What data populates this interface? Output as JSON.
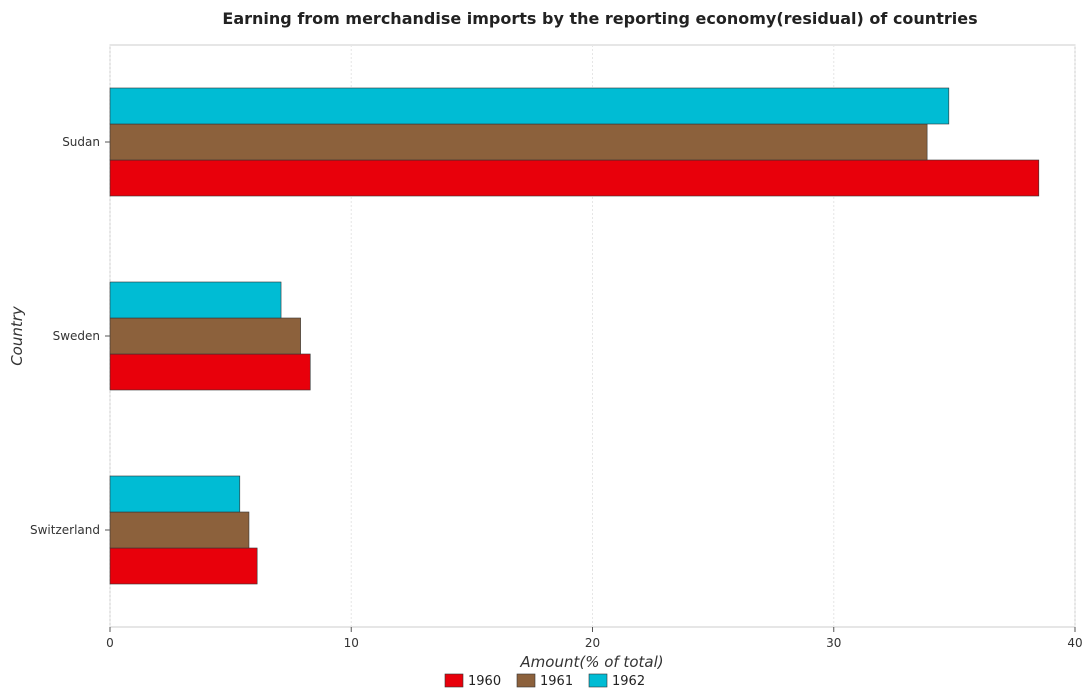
{
  "chart_data": {
    "type": "bar",
    "orientation": "horizontal",
    "title": "Earning from merchandise imports by the reporting economy(residual) of countries",
    "xlabel": "Amount(% of total)",
    "ylabel": "Country",
    "xlim": [
      0,
      40
    ],
    "xticks": [
      0,
      10,
      20,
      30,
      40
    ],
    "categories": [
      "Sudan",
      "Sweden",
      "Switzerland"
    ],
    "series": [
      {
        "name": "1960",
        "color": "#e8000b",
        "values": [
          38.5,
          8.3,
          6.1
        ]
      },
      {
        "name": "1961",
        "color": "#8c613c",
        "values": [
          33.87,
          7.9,
          5.76
        ]
      },
      {
        "name": "1962",
        "color": "#00bcd4",
        "values": [
          34.77,
          7.09,
          5.38
        ]
      }
    ],
    "grid": true,
    "legend_position": "bottom-center"
  }
}
